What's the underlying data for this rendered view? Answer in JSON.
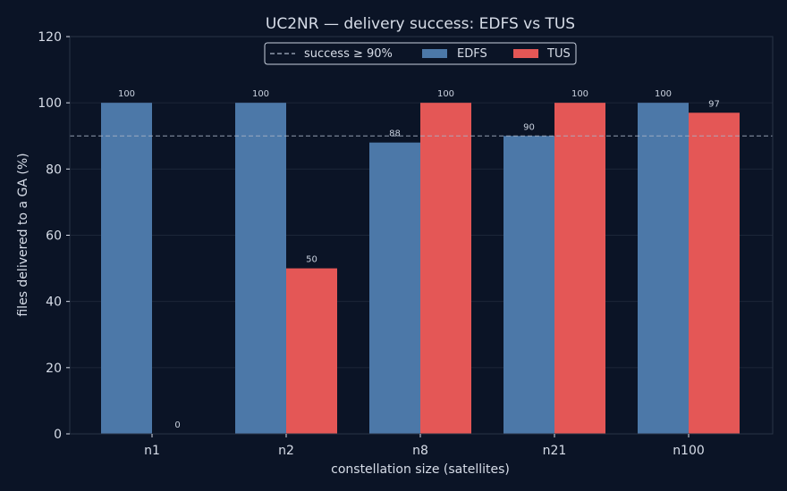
{
  "chart_data": {
    "type": "bar",
    "title": "UC2NR — delivery success: EDFS vs TUS",
    "xlabel": "constellation size (satellites)",
    "ylabel": "files delivered to a GA (%)",
    "ylim": [
      0,
      120
    ],
    "yticks": [
      0,
      20,
      40,
      60,
      80,
      100,
      120
    ],
    "categories": [
      "n1",
      "n2",
      "n8",
      "n21",
      "n100"
    ],
    "series": [
      {
        "name": "EDFS",
        "color": "#4c78a8",
        "values": [
          100,
          100,
          88,
          90,
          100
        ],
        "labels": [
          "100",
          "100",
          "88",
          "90",
          "100"
        ]
      },
      {
        "name": "TUS",
        "color": "#e45756",
        "values": [
          0,
          50,
          100,
          100,
          97
        ],
        "labels": [
          "0",
          "50",
          "100",
          "100",
          "97"
        ]
      }
    ],
    "reference_line": {
      "label": "success ≥ 90%",
      "value": 90,
      "color": "#a9b4c6",
      "style": "dashed"
    },
    "grid": true,
    "legend_position": "top-center"
  },
  "colors": {
    "background": "#0b1426",
    "axes_border": "#2a3447",
    "grid": "#1c2638",
    "text": "#d7dde8",
    "bar_label": "#c9d1de"
  }
}
